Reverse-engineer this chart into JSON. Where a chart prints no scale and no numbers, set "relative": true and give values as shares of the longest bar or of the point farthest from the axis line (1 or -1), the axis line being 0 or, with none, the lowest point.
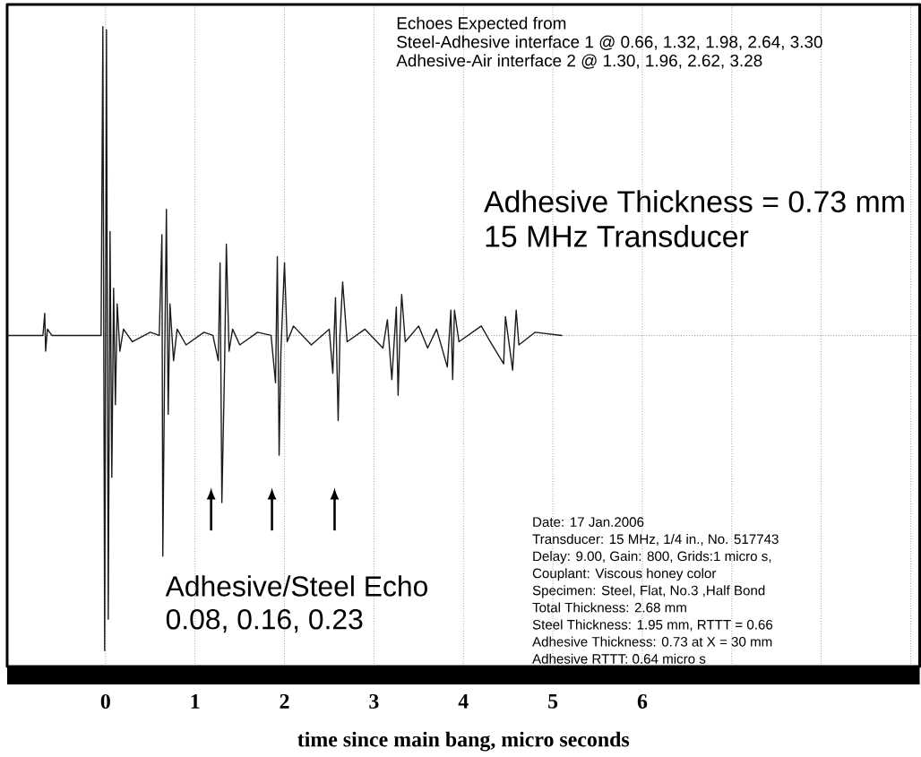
{
  "chart_data": {
    "type": "line",
    "relative": true,
    "xlabel": "time since main bang, micro seconds",
    "xlim": [
      -1.1,
      9.1
    ],
    "xticks": [
      0,
      1,
      2,
      3,
      4,
      5,
      6,
      {
        "value": 7,
        "label": null
      },
      {
        "value": 8,
        "label": null
      },
      {
        "value": 9,
        "label": null
      }
    ],
    "grid": "x",
    "tick_labels": "x",
    "marker": "none",
    "line_style": "solid",
    "series": [
      {
        "color": "#1a1a1a",
        "x": [
          -1.1,
          -0.7,
          -0.68,
          -0.67,
          -0.65,
          -0.6,
          -0.05,
          -0.03,
          -0.01,
          0.01,
          0.03,
          0.05,
          0.07,
          0.09,
          0.11,
          0.13,
          0.16,
          0.2,
          0.3,
          0.5,
          0.6,
          0.63,
          0.64,
          0.66,
          0.68,
          0.7,
          0.72,
          0.76,
          0.8,
          0.9,
          1.1,
          1.2,
          1.26,
          1.28,
          1.3,
          1.33,
          1.35,
          1.38,
          1.42,
          1.5,
          1.7,
          1.85,
          1.9,
          1.92,
          1.94,
          1.96,
          2.0,
          2.03,
          2.1,
          2.3,
          2.5,
          2.54,
          2.57,
          2.6,
          2.62,
          2.65,
          2.7,
          2.9,
          3.1,
          3.15,
          3.2,
          3.25,
          3.27,
          3.29,
          3.31,
          3.35,
          3.5,
          3.6,
          3.7,
          3.82,
          3.86,
          3.88,
          3.9,
          3.95,
          4.2,
          4.3,
          4.45,
          4.47,
          4.55,
          4.59,
          4.62,
          4.8,
          5.1
        ],
        "values": [
          0,
          0,
          0.07,
          -0.05,
          0.02,
          0,
          0,
          0.98,
          -1.0,
          0.97,
          -0.9,
          0.33,
          -0.45,
          0.15,
          -0.22,
          0.1,
          -0.05,
          0.02,
          -0.02,
          0.01,
          0,
          0.32,
          -0.7,
          -0.1,
          0.4,
          -0.25,
          0.1,
          -0.08,
          0.02,
          -0.03,
          0.01,
          0,
          -0.08,
          0.23,
          -0.53,
          -0.1,
          0.29,
          -0.05,
          0.02,
          -0.03,
          0.01,
          0,
          -0.15,
          0.25,
          -0.38,
          -0.05,
          0.23,
          -0.02,
          0.03,
          -0.03,
          0.02,
          -0.12,
          0.12,
          -0.27,
          0.0,
          0.17,
          -0.02,
          0.02,
          -0.04,
          0.05,
          -0.14,
          0.09,
          -0.19,
          0.0,
          0.13,
          -0.02,
          0.03,
          -0.04,
          0.02,
          -0.1,
          0.08,
          -0.14,
          0.08,
          -0.02,
          0.03,
          -0.02,
          -0.09,
          0.06,
          -0.11,
          0.08,
          -0.03,
          0.01,
          0
        ]
      }
    ],
    "annotations": [
      "Echoes Expected from",
      "Steel-Adhesive interface 1 @ 0.66, 1.32, 1.98, 2.64, 3.30",
      "Adhesive-Air interface 2 @ 1.30, 1.96, 2.62, 3.28",
      "Adhesive Thickness = 0.73 mm",
      "15 MHz Transducer",
      "Adhesive/Steel Echo",
      "0.08, 0.16, 0.23",
      "Date: 17 Jan.2006",
      "Transducer: 15 MHz, 1/4 in., No. 517743",
      "Delay: 9.00, Gain: 800, Grids:1 micro s,",
      "Couplant: Viscous honey color",
      "Specimen: Steel, Flat, No.3 ,Half Bond",
      "Total Thickness: 2.68 mm",
      "Steel Thickness: 1.95 mm, RTTT = 0.66",
      "Adhesive Thickness: 0.73 at X = 30 mm",
      "Adhesive RTTT: 0.64 micro s"
    ]
  }
}
